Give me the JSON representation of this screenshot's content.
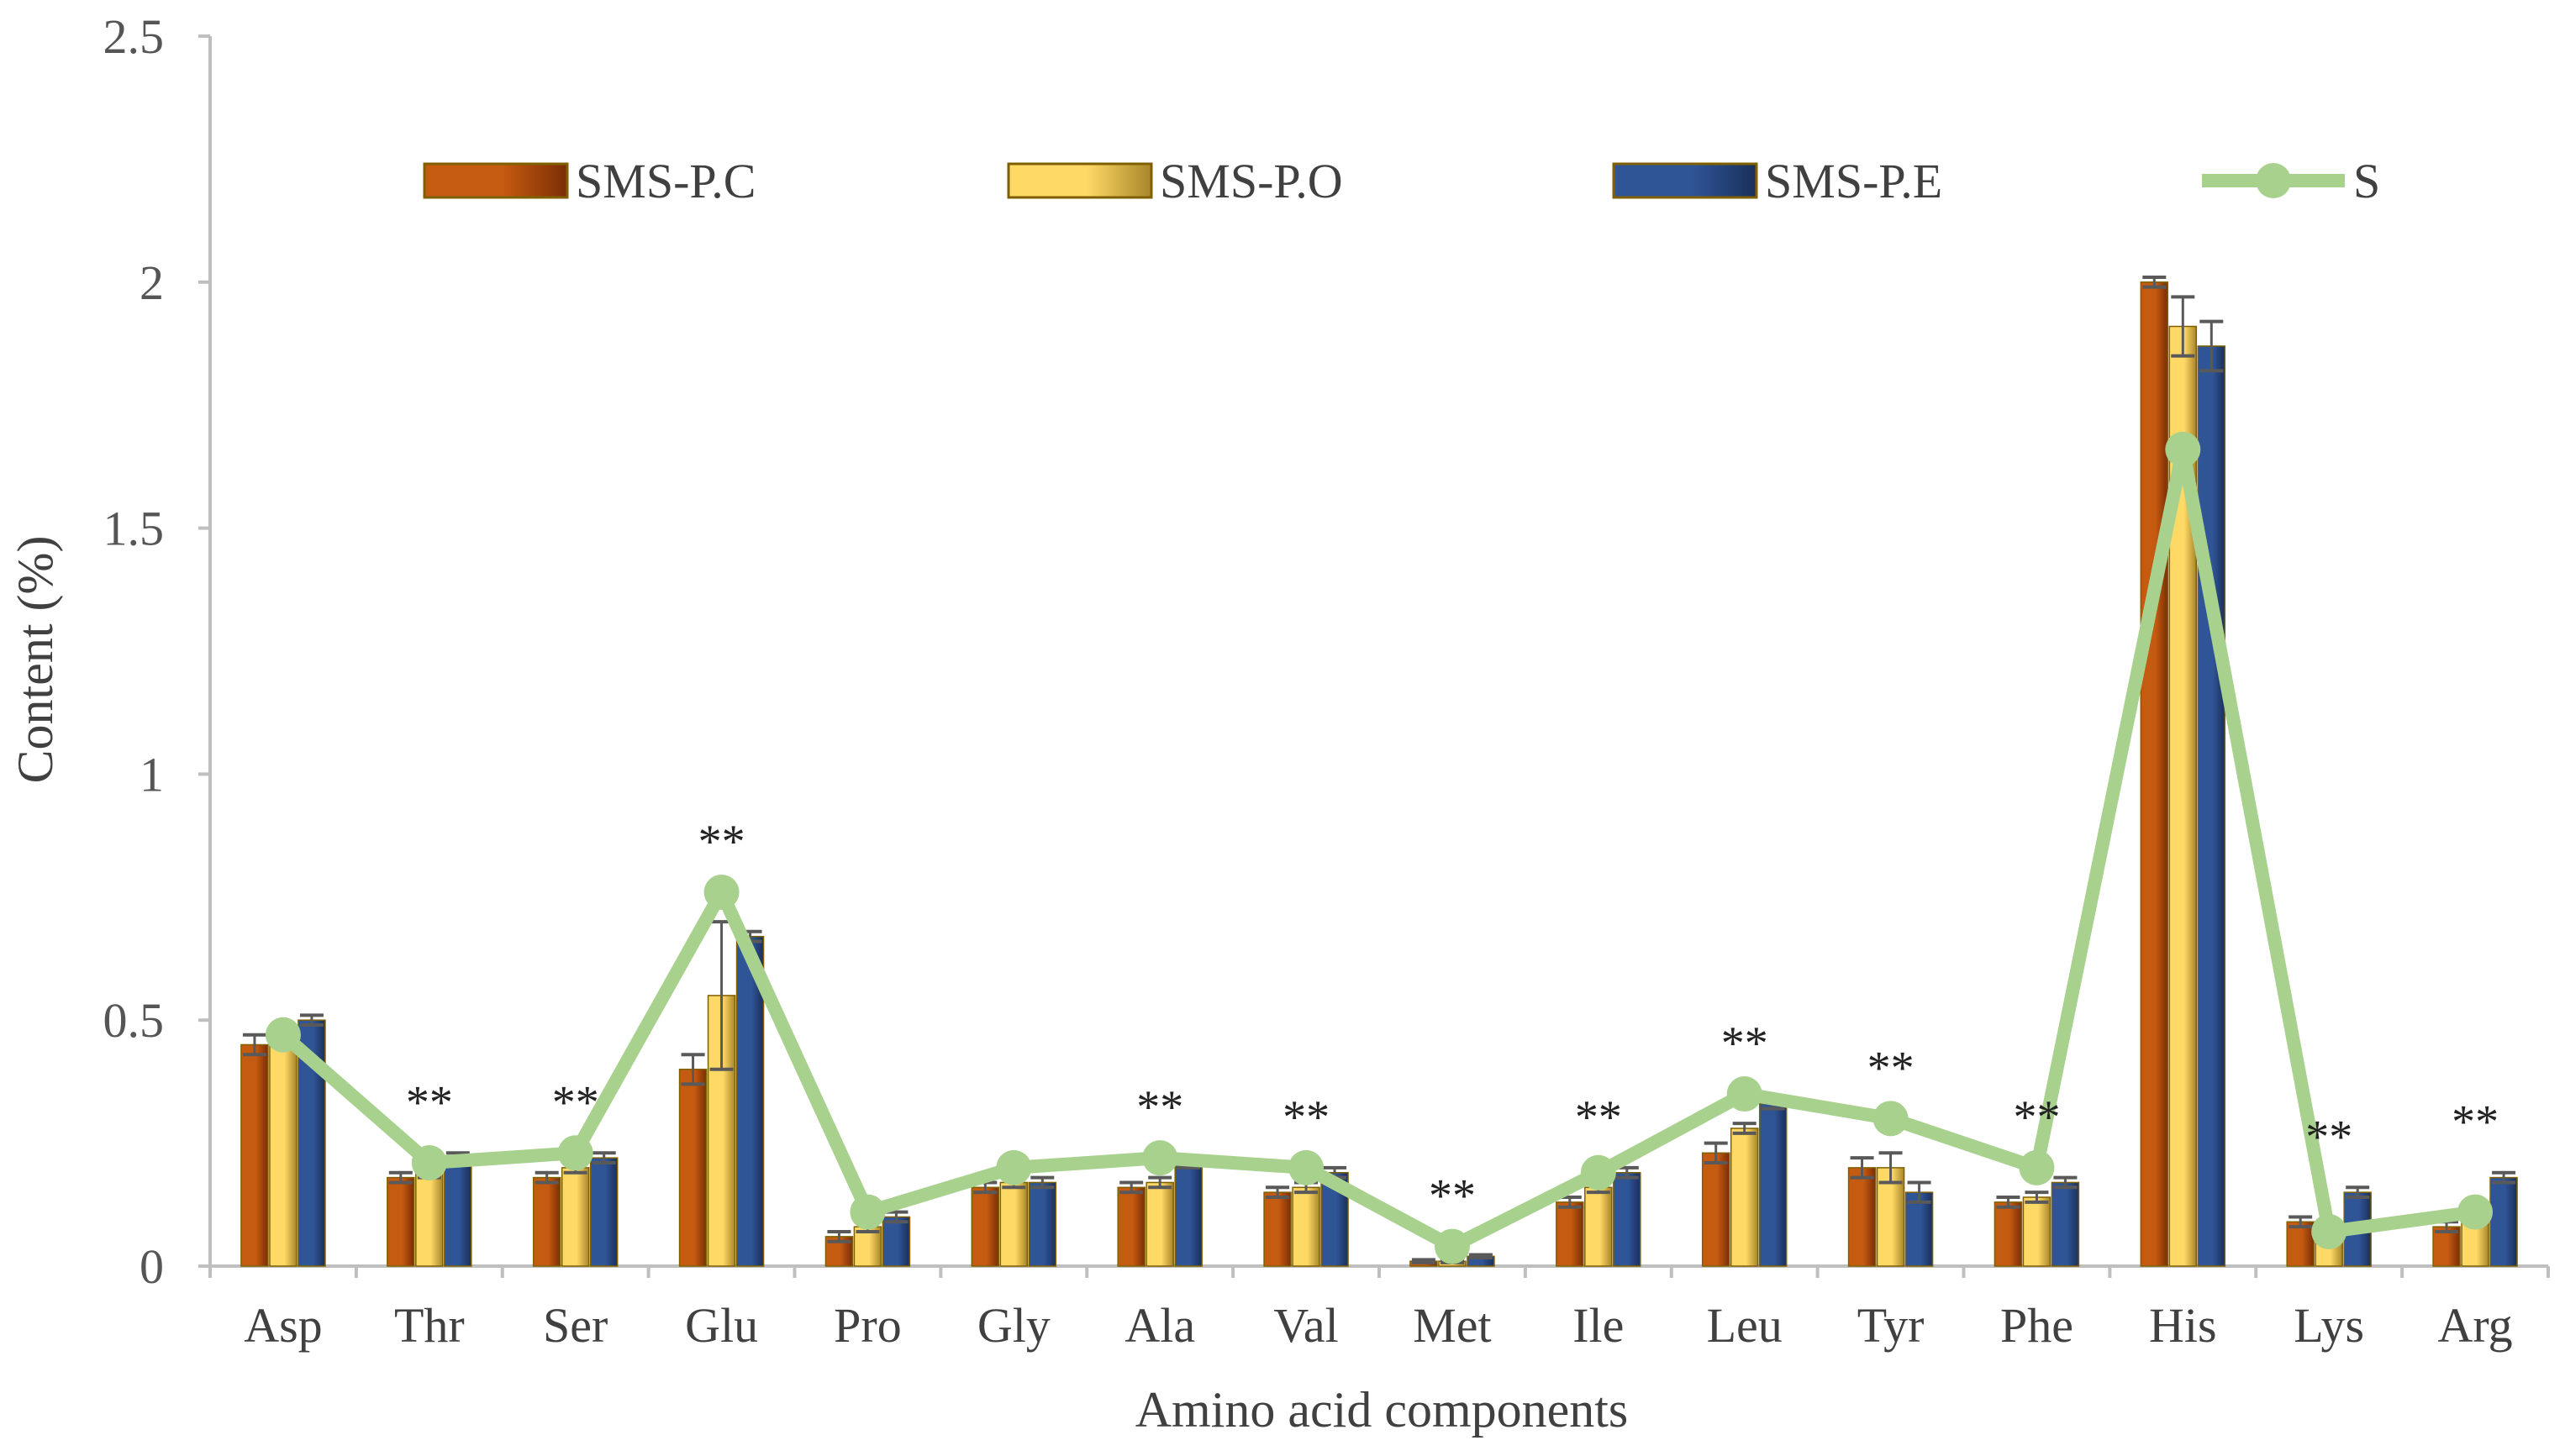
{
  "chart_data": {
    "type": "bar",
    "title": "",
    "xlabel": "Amino acid components",
    "ylabel": "Content (%)",
    "ylim": [
      0,
      2.5
    ],
    "yticks": [
      0,
      0.5,
      1,
      1.5,
      2,
      2.5
    ],
    "ytick_labels": [
      "0",
      "0.5",
      "1",
      "1.5",
      "2",
      "2.5"
    ],
    "grid": false,
    "legend_position": "top",
    "categories": [
      "Asp",
      "Thr",
      "Ser",
      "Glu",
      "Pro",
      "Gly",
      "Ala",
      "Val",
      "Met",
      "Ile",
      "Leu",
      "Tyr",
      "Phe",
      "His",
      "Lys",
      "Arg"
    ],
    "series": [
      {
        "name": "SMS-P.C",
        "kind": "bar",
        "color": "#C55A11",
        "color_dark": "#7A2E05",
        "values": [
          0.45,
          0.18,
          0.18,
          0.4,
          0.06,
          0.16,
          0.16,
          0.15,
          0.01,
          0.13,
          0.23,
          0.2,
          0.13,
          2.0,
          0.09,
          0.08
        ],
        "errors": [
          0.02,
          0.01,
          0.01,
          0.03,
          0.01,
          0.01,
          0.01,
          0.01,
          0.003,
          0.01,
          0.02,
          0.02,
          0.01,
          0.01,
          0.01,
          0.01
        ]
      },
      {
        "name": "SMS-P.O",
        "kind": "bar",
        "color": "#FFD966",
        "color_dark": "#A8862A",
        "values": [
          0.47,
          0.19,
          0.2,
          0.55,
          0.08,
          0.17,
          0.17,
          0.16,
          0.01,
          0.16,
          0.28,
          0.2,
          0.14,
          1.91,
          0.08,
          0.1
        ],
        "errors": [
          0.01,
          0.01,
          0.01,
          0.15,
          0.01,
          0.01,
          0.01,
          0.01,
          0.003,
          0.01,
          0.01,
          0.03,
          0.01,
          0.06,
          0.01,
          0.01
        ]
      },
      {
        "name": "SMS-P.E",
        "kind": "bar",
        "color": "#2F5597",
        "color_dark": "#1A2F59",
        "values": [
          0.5,
          0.22,
          0.22,
          0.67,
          0.1,
          0.17,
          0.21,
          0.19,
          0.02,
          0.19,
          0.33,
          0.15,
          0.17,
          1.87,
          0.15,
          0.18
        ],
        "errors": [
          0.01,
          0.01,
          0.01,
          0.01,
          0.01,
          0.01,
          0.01,
          0.01,
          0.003,
          0.01,
          0.01,
          0.02,
          0.01,
          0.05,
          0.01,
          0.01
        ]
      },
      {
        "name": "S",
        "kind": "line",
        "color": "#A9D18E",
        "values": [
          0.47,
          0.21,
          0.23,
          0.76,
          0.11,
          0.2,
          0.22,
          0.2,
          0.04,
          0.19,
          0.35,
          0.3,
          0.2,
          1.66,
          0.07,
          0.11
        ]
      }
    ],
    "annotations": [
      "",
      "**",
      "**",
      "**",
      "",
      "",
      "**",
      "**",
      "**",
      "**",
      "**",
      "**",
      "**",
      "",
      "**",
      "**"
    ]
  }
}
